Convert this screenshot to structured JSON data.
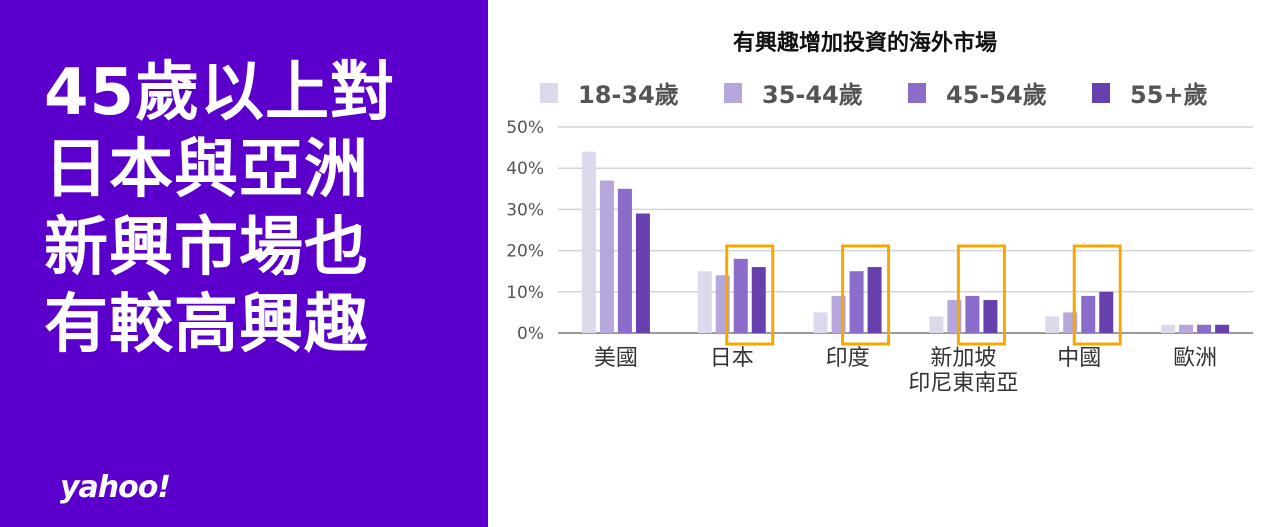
{
  "headline": {
    "lines": [
      "45歲以上對",
      "日本與亞洲",
      "新興市場也",
      "有較高興趣"
    ]
  },
  "logo": {
    "text": "yahoo!"
  },
  "colors": {
    "left_bg": "#5b00cc",
    "highlight_box": "#f5a800",
    "gridline": "#d4d4d4",
    "series": [
      "#ded8ec",
      "#b6a6dc",
      "#8b6ccb",
      "#6641ad"
    ]
  },
  "chart_data": {
    "type": "bar",
    "title": "有興趣增加投資的海外市場",
    "xlabel": "",
    "ylabel": "",
    "ylim": [
      0,
      50
    ],
    "yticks": [
      0,
      10,
      20,
      30,
      40,
      50
    ],
    "ytick_labels": [
      "0%",
      "10%",
      "20%",
      "30%",
      "40%",
      "50%"
    ],
    "grid": true,
    "legend_position": "top",
    "categories": [
      [
        "美國"
      ],
      [
        "日本"
      ],
      [
        "印度"
      ],
      [
        "新加坡",
        "印尼東南亞"
      ],
      [
        "中國"
      ],
      [
        "歐洲"
      ]
    ],
    "series": [
      {
        "name": "18-34歲",
        "values": [
          44,
          15,
          5,
          4,
          4,
          2
        ]
      },
      {
        "name": "35-44歲",
        "values": [
          37,
          14,
          9,
          8,
          5,
          2
        ]
      },
      {
        "name": "45-54歲",
        "values": [
          35,
          18,
          15,
          9,
          9,
          2
        ]
      },
      {
        "name": "55+歲",
        "values": [
          29,
          16,
          16,
          8,
          10,
          2
        ]
      }
    ],
    "highlighted_categories": [
      1,
      2,
      3,
      4
    ]
  }
}
